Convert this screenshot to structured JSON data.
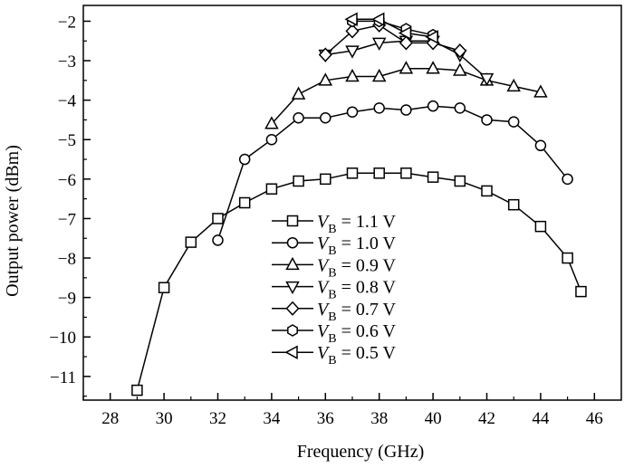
{
  "chart_data": {
    "type": "line",
    "title": "",
    "xlabel": "Frequency (GHz)",
    "ylabel": "Output power (dBm)",
    "xlim": [
      27,
      47
    ],
    "ylim": [
      -11.6,
      -1.6
    ],
    "xticks": [
      28,
      30,
      32,
      34,
      36,
      38,
      40,
      42,
      44,
      46
    ],
    "yticks": [
      -11,
      -10,
      -9,
      -8,
      -7,
      -6,
      -5,
      -4,
      -3,
      -2
    ],
    "grid": false,
    "legend_position": "bottom-center",
    "series": [
      {
        "name": "V_B = 1.1 V",
        "legend": {
          "var": "V",
          "sub": "B",
          "text": " = 1.1 V"
        },
        "marker": "square",
        "x": [
          29,
          30,
          31,
          32,
          33,
          34,
          35,
          36,
          37,
          38,
          39,
          40,
          41,
          42,
          43,
          44,
          45,
          45.5
        ],
        "y": [
          -11.35,
          -8.75,
          -7.6,
          -7.0,
          -6.6,
          -6.25,
          -6.05,
          -6.0,
          -5.85,
          -5.85,
          -5.85,
          -5.95,
          -6.05,
          -6.3,
          -6.65,
          -7.2,
          -8.0,
          -8.85
        ]
      },
      {
        "name": "V_B = 1.0 V",
        "legend": {
          "var": "V",
          "sub": "B",
          "text": " = 1.0 V"
        },
        "marker": "circle",
        "x": [
          32,
          33,
          34,
          35,
          36,
          37,
          38,
          39,
          40,
          41,
          42,
          43,
          44,
          45
        ],
        "y": [
          -7.55,
          -5.5,
          -5.0,
          -4.45,
          -4.45,
          -4.3,
          -4.2,
          -4.25,
          -4.15,
          -4.2,
          -4.5,
          -4.55,
          -5.15,
          -6.0
        ]
      },
      {
        "name": "V_B = 0.9 V",
        "legend": {
          "var": "V",
          "sub": "B",
          "text": " = 0.9 V"
        },
        "marker": "triangle-up",
        "x": [
          34,
          35,
          36,
          37,
          38,
          39,
          40,
          41,
          42,
          43,
          44
        ],
        "y": [
          -4.6,
          -3.85,
          -3.5,
          -3.4,
          -3.4,
          -3.2,
          -3.2,
          -3.25,
          -3.5,
          -3.65,
          -3.8
        ]
      },
      {
        "name": "V_B = 0.8 V",
        "legend": {
          "var": "V",
          "sub": "B",
          "text": " = 0.8 V"
        },
        "marker": "triangle-down",
        "x": [
          36,
          37,
          38,
          39,
          40,
          41,
          42
        ],
        "y": [
          -2.85,
          -2.75,
          -2.55,
          -2.5,
          -2.5,
          -2.85,
          -3.45
        ]
      },
      {
        "name": "V_B = 0.7 V",
        "legend": {
          "var": "V",
          "sub": "B",
          "text": " = 0.7 V"
        },
        "marker": "diamond",
        "x": [
          36,
          37,
          38,
          39,
          40,
          41
        ],
        "y": [
          -2.85,
          -2.25,
          -2.1,
          -2.55,
          -2.55,
          -2.75
        ]
      },
      {
        "name": "V_B = 0.6 V",
        "legend": {
          "var": "V",
          "sub": "B",
          "text": " = 0.6 V"
        },
        "marker": "hexagon",
        "x": [
          37,
          38,
          39,
          40
        ],
        "y": [
          -2.0,
          -2.0,
          -2.2,
          -2.35
        ]
      },
      {
        "name": "V_B = 0.5 V",
        "legend": {
          "var": "V",
          "sub": "B",
          "text": " = 0.5 V"
        },
        "marker": "triangle-left",
        "x": [
          37,
          38,
          39,
          40
        ],
        "y": [
          -1.95,
          -1.95,
          -2.3,
          -2.4
        ]
      }
    ]
  }
}
